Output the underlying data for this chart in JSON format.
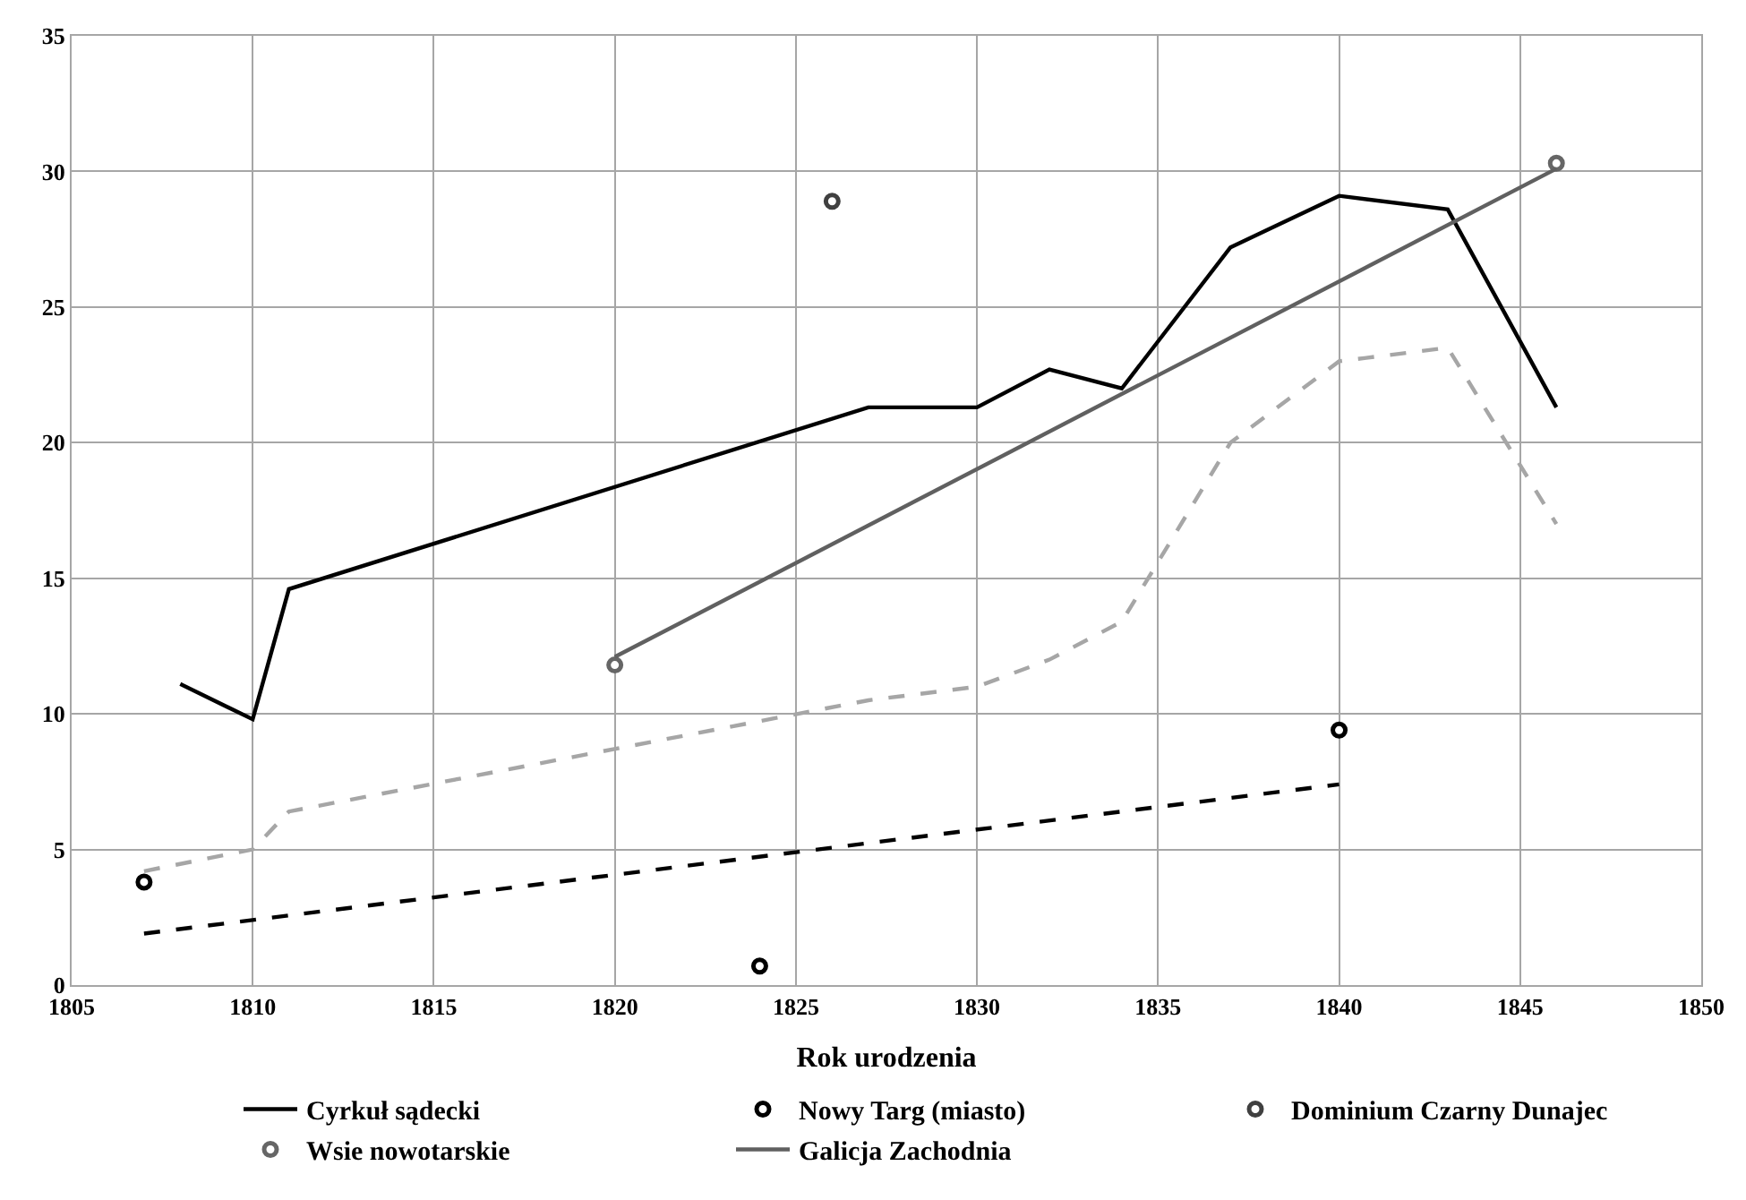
{
  "chart_data": {
    "type": "line",
    "xlabel": "Rok urodzenia",
    "xlim": [
      1805,
      1850
    ],
    "xticks": [
      1805,
      1810,
      1815,
      1820,
      1825,
      1830,
      1835,
      1840,
      1845,
      1850
    ],
    "ylim": [
      0,
      35
    ],
    "yticks": [
      0,
      5,
      10,
      15,
      20,
      25,
      30,
      35
    ],
    "grid": true,
    "legend": "bottom",
    "series": [
      {
        "name": "Cyrkuł sądecki",
        "color": "#000000",
        "line_style": "solid",
        "marker": "none",
        "x": [
          1808,
          1810,
          1811,
          1827,
          1830,
          1832,
          1834,
          1837,
          1840,
          1843,
          1846
        ],
        "values": [
          11.1,
          9.8,
          14.6,
          21.3,
          21.3,
          22.7,
          22.0,
          27.2,
          29.1,
          28.6,
          21.3
        ]
      },
      {
        "name": "Nowy Targ (miasto)",
        "type": "scatter",
        "color": "#000000",
        "marker": "circle",
        "x": [
          1807,
          1824,
          1840
        ],
        "values": [
          3.8,
          0.7,
          9.4
        ]
      },
      {
        "name": "Dominium Czarny Dunajec",
        "type": "scatter",
        "color": "#404040",
        "marker": "circle",
        "x": [
          1826
        ],
        "values": [
          28.9
        ]
      },
      {
        "name": "Wsie nowotarskie",
        "type": "scatter",
        "color": "#666666",
        "marker": "circle",
        "x": [
          1820,
          1846
        ],
        "values": [
          11.8,
          30.3
        ]
      },
      {
        "name": "Galicja Zachodnia",
        "color": "#606060",
        "line_style": "solid",
        "marker": "none",
        "x": [
          1820,
          1846
        ],
        "values": [
          12.1,
          30.1
        ]
      },
      {
        "color": "#a6a6a6",
        "line_style": "dashed",
        "marker": "none",
        "x": [
          1807,
          1810,
          1811,
          1827,
          1830,
          1832,
          1834,
          1837,
          1840,
          1843,
          1846
        ],
        "values": [
          4.2,
          5.0,
          6.4,
          10.5,
          11.0,
          12.0,
          13.4,
          20.0,
          23.0,
          23.5,
          17.0
        ]
      },
      {
        "color": "#000000",
        "line_style": "dashed",
        "marker": "none",
        "x": [
          1807,
          1840
        ],
        "values": [
          1.9,
          7.4
        ]
      }
    ]
  }
}
